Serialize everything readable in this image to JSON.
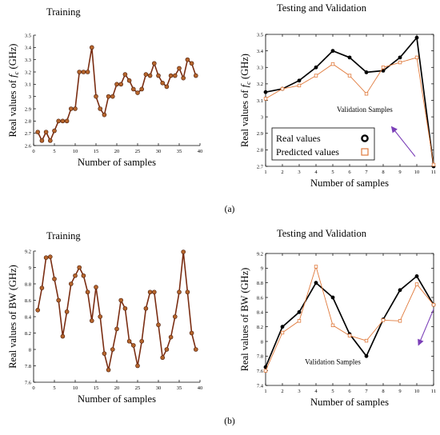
{
  "panel_labels": {
    "a": "(a)",
    "b": "(b)"
  },
  "chart_data": [
    {
      "id": "a-train",
      "type": "line",
      "title": "Training",
      "xlabel": "Number of samples",
      "ylabel_pre": "Real values of ",
      "ylabel_var": "f",
      "ylabel_sub": "c",
      "ylabel_post": " (GHz)",
      "xlim": [
        0,
        40
      ],
      "ylim": [
        2.6,
        3.5
      ],
      "xticks": [
        0,
        5,
        10,
        15,
        20,
        25,
        30,
        35,
        40
      ],
      "yticks": [
        2.6,
        2.7,
        2.8,
        2.9,
        3.0,
        3.1,
        3.2,
        3.3,
        3.4,
        3.5
      ],
      "ytick_labels": [
        "2.6",
        "2.7",
        "2.8",
        "2.9",
        "3",
        "3.1",
        "3.2",
        "3.3",
        "3.4",
        "3.5"
      ],
      "box": false,
      "series": [
        {
          "color": "#7a2d12",
          "marker_fill": "#b5652c",
          "x": [
            1,
            2,
            3,
            4,
            5,
            6,
            7,
            8,
            9,
            10,
            11,
            12,
            13,
            14,
            15,
            16,
            17,
            18,
            19,
            20,
            21,
            22,
            23,
            24,
            25,
            26,
            27,
            28,
            29,
            30,
            31,
            32,
            33,
            34,
            35,
            36,
            37,
            38,
            39
          ],
          "y": [
            2.71,
            2.64,
            2.71,
            2.64,
            2.72,
            2.8,
            2.8,
            2.8,
            2.9,
            2.9,
            3.2,
            3.2,
            3.2,
            3.4,
            3.0,
            2.9,
            2.85,
            3.0,
            3.0,
            3.1,
            3.1,
            3.18,
            3.13,
            3.06,
            3.03,
            3.06,
            3.18,
            3.17,
            3.27,
            3.17,
            3.11,
            3.08,
            3.17,
            3.17,
            3.23,
            3.15,
            3.3,
            3.27,
            3.17
          ]
        }
      ]
    },
    {
      "id": "a-test",
      "type": "line",
      "title": "Testing and Validation",
      "xlabel": "Number of samples",
      "ylabel_pre": "Real values of ",
      "ylabel_var": "f",
      "ylabel_sub": "c",
      "ylabel_post": " (GHz)",
      "xlim": [
        1,
        11
      ],
      "ylim": [
        2.7,
        3.5
      ],
      "xticks": [
        1,
        2,
        3,
        4,
        5,
        6,
        7,
        8,
        9,
        10,
        11
      ],
      "yticks": [
        2.7,
        2.8,
        2.9,
        3.0,
        3.1,
        3.2,
        3.3,
        3.4,
        3.5
      ],
      "ytick_labels": [
        "2.7",
        "2.8",
        "2.9",
        "3",
        "3.1",
        "3.2",
        "3.3",
        "3.4",
        "3.5"
      ],
      "box": true,
      "annotation": {
        "text": "Validation Samples",
        "x": 6.9,
        "y": 3.03,
        "arrow_from": [
          9.9,
          2.76
        ],
        "arrow_to": [
          8.5,
          2.94
        ]
      },
      "legend": {
        "position": "lower-left",
        "entries": [
          {
            "label": "Real values",
            "series": 0
          },
          {
            "label": "Predicted values",
            "series": 1
          }
        ]
      },
      "series": [
        {
          "style": "real",
          "color": "#000000",
          "x": [
            1,
            2,
            3,
            4,
            5,
            6,
            7,
            8,
            9,
            10,
            11
          ],
          "y": [
            3.15,
            3.17,
            3.22,
            3.3,
            3.4,
            3.36,
            3.27,
            3.28,
            3.36,
            3.48,
            2.7
          ]
        },
        {
          "style": "pred",
          "color": "#e07a3c",
          "x": [
            1,
            2,
            3,
            4,
            5,
            6,
            7,
            8,
            9,
            10,
            11
          ],
          "y": [
            3.11,
            3.17,
            3.19,
            3.25,
            3.32,
            3.25,
            3.14,
            3.3,
            3.33,
            3.36,
            2.71
          ]
        }
      ]
    },
    {
      "id": "b-train",
      "type": "line",
      "title": "Training",
      "xlabel": "Number of samples",
      "ylabel_pre": "Real values of BW (GHz)",
      "ylabel_var": "",
      "ylabel_sub": "",
      "ylabel_post": "",
      "xlim": [
        0,
        40
      ],
      "ylim": [
        7.6,
        9.2
      ],
      "xticks": [
        0,
        5,
        10,
        15,
        20,
        25,
        30,
        35,
        40
      ],
      "yticks": [
        7.6,
        7.8,
        8.0,
        8.2,
        8.4,
        8.6,
        8.8,
        9.0,
        9.2
      ],
      "ytick_labels": [
        "7.6",
        "7.8",
        "8",
        "8.2",
        "8.4",
        "8.6",
        "8.8",
        "9",
        "9.2"
      ],
      "box": false,
      "series": [
        {
          "color": "#7a2d12",
          "marker_fill": "#b5652c",
          "x": [
            1,
            2,
            3,
            4,
            5,
            6,
            7,
            8,
            9,
            10,
            11,
            12,
            13,
            14,
            15,
            16,
            17,
            18,
            19,
            20,
            21,
            22,
            23,
            24,
            25,
            26,
            27,
            28,
            29,
            30,
            31,
            32,
            33,
            34,
            35,
            36,
            37,
            38,
            39
          ],
          "y": [
            8.48,
            8.75,
            9.12,
            9.13,
            8.86,
            8.6,
            8.16,
            8.46,
            8.8,
            8.9,
            9.0,
            8.9,
            8.7,
            8.35,
            8.76,
            8.4,
            7.95,
            7.75,
            8.0,
            8.25,
            8.6,
            8.5,
            8.1,
            8.05,
            7.8,
            8.1,
            8.5,
            8.7,
            8.7,
            8.3,
            7.9,
            8.0,
            8.15,
            8.4,
            8.7,
            9.19,
            8.7,
            8.2,
            8.0
          ]
        }
      ]
    },
    {
      "id": "b-test",
      "type": "line",
      "title": "Testing and Validation",
      "xlabel": "Number of samples",
      "ylabel_pre": "Real values of BW (GHz)",
      "ylabel_var": "",
      "ylabel_sub": "",
      "ylabel_post": "",
      "xlim": [
        1,
        11
      ],
      "ylim": [
        7.4,
        9.2
      ],
      "xticks": [
        1,
        2,
        3,
        4,
        5,
        6,
        7,
        8,
        9,
        10,
        11
      ],
      "yticks": [
        7.4,
        7.6,
        7.8,
        8.0,
        8.2,
        8.4,
        8.6,
        8.8,
        9.0,
        9.2
      ],
      "ytick_labels": [
        "7.4",
        "7.6",
        "7.8",
        "8",
        "8.2",
        "8.4",
        "8.6",
        "8.8",
        "9",
        "9.2"
      ],
      "box": true,
      "annotation": {
        "text": "Validation Samples",
        "x": 5.0,
        "y": 7.69,
        "arrow_from": [
          11.0,
          8.44
        ],
        "arrow_to": [
          10.1,
          7.95
        ]
      },
      "series": [
        {
          "style": "real",
          "color": "#000000",
          "x": [
            1,
            2,
            3,
            4,
            5,
            6,
            7,
            8,
            9,
            10,
            11
          ],
          "y": [
            7.65,
            8.2,
            8.4,
            8.8,
            8.6,
            8.1,
            7.8,
            8.3,
            8.7,
            8.89,
            8.5
          ]
        },
        {
          "style": "pred",
          "color": "#e07a3c",
          "x": [
            1,
            2,
            3,
            4,
            5,
            6,
            7,
            8,
            9,
            10,
            11
          ],
          "y": [
            7.6,
            8.12,
            8.28,
            9.02,
            8.22,
            8.08,
            8.01,
            8.29,
            8.28,
            8.78,
            8.5
          ]
        }
      ]
    }
  ]
}
